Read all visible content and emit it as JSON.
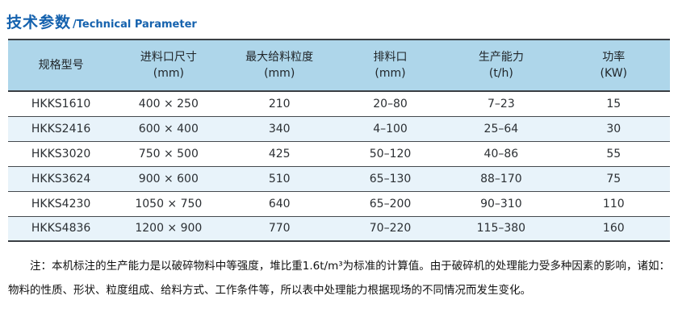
{
  "title": {
    "cn": "技术参数",
    "en": "/Technical Parameter"
  },
  "colors": {
    "title_blue": "#1562ae",
    "header_bg": "#aed6ea",
    "row_alt_bg": "#e8f3fa",
    "border_dark": "#3a3f44"
  },
  "table": {
    "columns": [
      {
        "label": "规格型号",
        "unit": ""
      },
      {
        "label": "进料口尺寸",
        "unit": "(mm)"
      },
      {
        "label": "最大给料粒度",
        "unit": "(mm)"
      },
      {
        "label": "排料口",
        "unit": "(mm)"
      },
      {
        "label": "生产能力",
        "unit": "(t/h)"
      },
      {
        "label": "功率",
        "unit": "(KW)"
      }
    ],
    "rows": [
      {
        "model": "HKKS1610",
        "feed_size": "400 × 250",
        "max_feed": "210",
        "discharge": "20–80",
        "capacity": "7–23",
        "power": "15"
      },
      {
        "model": "HKKS2416",
        "feed_size": "600 × 400",
        "max_feed": "340",
        "discharge": "4–100",
        "capacity": "25–64",
        "power": "30"
      },
      {
        "model": "HKKS3020",
        "feed_size": "750 × 500",
        "max_feed": "425",
        "discharge": "50–120",
        "capacity": "40–86",
        "power": "55"
      },
      {
        "model": "HKKS3624",
        "feed_size": "900 × 600",
        "max_feed": "510",
        "discharge": "65–130",
        "capacity": "88–170",
        "power": "75"
      },
      {
        "model": "HKKS4230",
        "feed_size": "1050 × 750",
        "max_feed": "640",
        "discharge": "65–200",
        "capacity": "90–310",
        "power": "110"
      },
      {
        "model": "HKKS4836",
        "feed_size": "1200 × 900",
        "max_feed": "770",
        "discharge": "70–220",
        "capacity": "115–380",
        "power": "160"
      }
    ]
  },
  "note": {
    "text": "注：本机标注的生产能力是以破碎物料中等强度，堆比重1.6t/m³为标准的计算值。由于破碎机的处理能力受多种因素的影响，诸如：物料的性质、形状、粒度组成、给料方式、工作条件等，所以表中处理能力根据现场的不同情况而发生变化。"
  }
}
